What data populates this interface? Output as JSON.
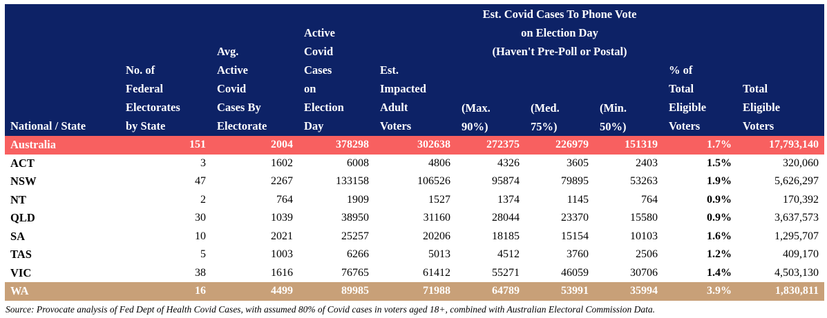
{
  "table": {
    "columns": [
      [
        "National / State"
      ],
      [
        "No. of",
        "Federal",
        "Electorates",
        "by State"
      ],
      [
        "Avg.",
        "Active",
        "Covid",
        "Cases By",
        "Electorate"
      ],
      [
        "Active",
        "Covid",
        "Cases",
        "on",
        "Election",
        "Day"
      ],
      [
        "Est.",
        "Impacted",
        "Adult",
        "Voters"
      ],
      [
        "(Max.",
        "90%)"
      ],
      [
        "(Med.",
        "75%)"
      ],
      [
        "(Min.",
        "50%)"
      ],
      [
        "% of",
        "Total",
        "Eligible",
        "Voters"
      ],
      [
        "Total",
        "Eligible",
        "Voters"
      ]
    ],
    "group_header": [
      "Est. Covid Cases To Phone Vote",
      "on Election Day",
      "(Haven't Pre-Poll or Postal)"
    ],
    "rows": [
      {
        "state": "Australia",
        "electorates": "151",
        "avg_cases": "2004",
        "active_cases": "378298",
        "impacted": "302638",
        "max90": "272375",
        "med75": "226979",
        "min50": "151319",
        "pct": "1.7%",
        "total": "17,793,140",
        "highlight": "red"
      },
      {
        "state": "ACT",
        "electorates": "3",
        "avg_cases": "1602",
        "active_cases": "6008",
        "impacted": "4806",
        "max90": "4326",
        "med75": "3605",
        "min50": "2403",
        "pct": "1.5%",
        "total": "320,060",
        "highlight": ""
      },
      {
        "state": "NSW",
        "electorates": "47",
        "avg_cases": "2267",
        "active_cases": "133158",
        "impacted": "106526",
        "max90": "95874",
        "med75": "79895",
        "min50": "53263",
        "pct": "1.9%",
        "total": "5,626,297",
        "highlight": ""
      },
      {
        "state": "NT",
        "electorates": "2",
        "avg_cases": "764",
        "active_cases": "1909",
        "impacted": "1527",
        "max90": "1374",
        "med75": "1145",
        "min50": "764",
        "pct": "0.9%",
        "total": "170,392",
        "highlight": ""
      },
      {
        "state": "QLD",
        "electorates": "30",
        "avg_cases": "1039",
        "active_cases": "38950",
        "impacted": "31160",
        "max90": "28044",
        "med75": "23370",
        "min50": "15580",
        "pct": "0.9%",
        "total": "3,637,573",
        "highlight": ""
      },
      {
        "state": "SA",
        "electorates": "10",
        "avg_cases": "2021",
        "active_cases": "25257",
        "impacted": "20206",
        "max90": "18185",
        "med75": "15154",
        "min50": "10103",
        "pct": "1.6%",
        "total": "1,295,707",
        "highlight": ""
      },
      {
        "state": "TAS",
        "electorates": "5",
        "avg_cases": "1003",
        "active_cases": "6266",
        "impacted": "5013",
        "max90": "4512",
        "med75": "3760",
        "min50": "2506",
        "pct": "1.2%",
        "total": "409,170",
        "highlight": ""
      },
      {
        "state": "VIC",
        "electorates": "38",
        "avg_cases": "1616",
        "active_cases": "76765",
        "impacted": "61412",
        "max90": "55271",
        "med75": "46059",
        "min50": "30706",
        "pct": "1.4%",
        "total": "4,503,130",
        "highlight": ""
      },
      {
        "state": "WA",
        "electorates": "16",
        "avg_cases": "4499",
        "active_cases": "89985",
        "impacted": "71988",
        "max90": "64789",
        "med75": "53991",
        "min50": "35994",
        "pct": "3.9%",
        "total": "1,830,811",
        "highlight": "tan"
      }
    ]
  },
  "colors": {
    "header_bg": "#0d2266",
    "australia_row": "#f86060",
    "wa_row": "#c8a078"
  },
  "source": "Source: Provocate analysis of Fed Dept of Health Covid Cases, with assumed 80% of Covid cases in voters aged 18+, combined with Australian Electoral Commission Data."
}
